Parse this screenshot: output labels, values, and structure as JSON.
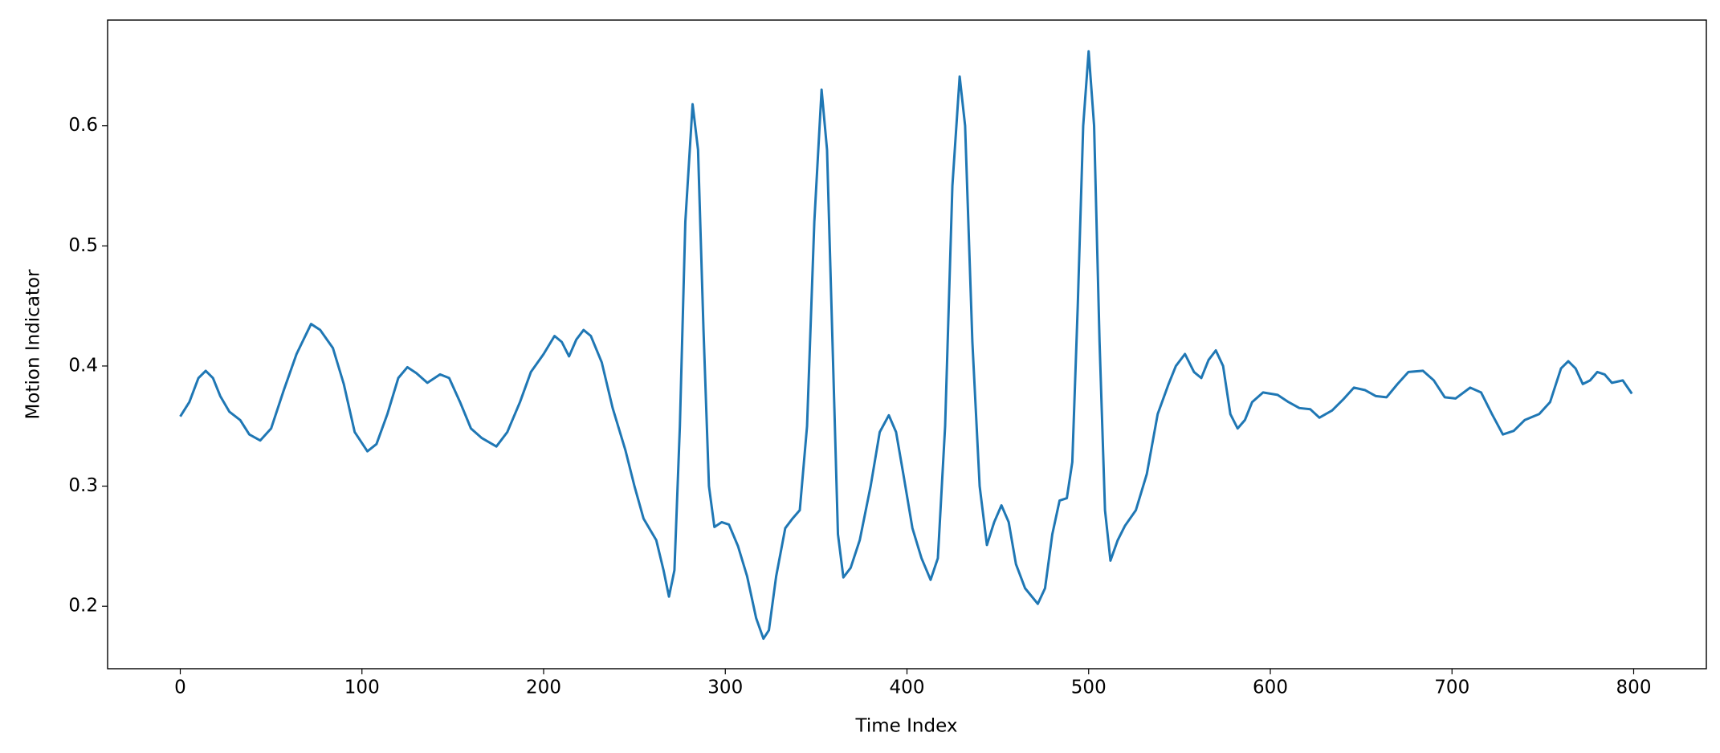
{
  "chart_data": {
    "type": "line",
    "xlabel": "Time Index",
    "ylabel": "Motion Indicator",
    "xlim": [
      -40,
      840
    ],
    "ylim": [
      0.148,
      0.688
    ],
    "xticks": [
      0,
      100,
      200,
      300,
      400,
      500,
      600,
      700,
      800
    ],
    "yticks": [
      0.2,
      0.3,
      0.4,
      0.5,
      0.6
    ],
    "x": [
      0,
      5,
      10,
      14,
      18,
      22,
      27,
      33,
      38,
      44,
      50,
      57,
      64,
      72,
      77,
      84,
      90,
      96,
      103,
      108,
      114,
      120,
      125,
      130,
      136,
      143,
      148,
      154,
      160,
      166,
      174,
      180,
      187,
      193,
      200,
      206,
      210,
      214,
      218,
      222,
      226,
      232,
      238,
      245,
      250,
      255,
      262,
      266,
      269,
      272,
      275,
      278,
      282,
      285,
      288,
      291,
      294,
      298,
      302,
      307,
      312,
      317,
      321,
      324,
      328,
      333,
      337,
      341,
      345,
      349,
      353,
      356,
      359,
      362,
      365,
      369,
      374,
      380,
      385,
      390,
      394,
      398,
      403,
      408,
      413,
      417,
      421,
      425,
      429,
      432,
      436,
      440,
      444,
      448,
      452,
      456,
      460,
      465,
      472,
      476,
      480,
      484,
      488,
      491,
      494,
      497,
      500,
      503,
      506,
      509,
      512,
      516,
      520,
      526,
      532,
      538,
      544,
      548,
      553,
      558,
      562,
      566,
      570,
      574,
      578,
      582,
      586,
      590,
      596,
      604,
      610,
      616,
      622,
      627,
      634,
      640,
      646,
      652,
      658,
      664,
      670,
      676,
      684,
      690,
      696,
      702,
      710,
      716,
      722,
      728,
      734,
      740,
      748,
      754,
      760,
      764,
      768,
      772,
      776,
      780,
      784,
      788,
      794,
      799
    ],
    "series": [
      {
        "color": "#1f77b4",
        "values": [
          0.358,
          0.37,
          0.39,
          0.396,
          0.39,
          0.375,
          0.362,
          0.355,
          0.343,
          0.338,
          0.348,
          0.38,
          0.41,
          0.435,
          0.43,
          0.415,
          0.385,
          0.345,
          0.329,
          0.335,
          0.36,
          0.39,
          0.399,
          0.394,
          0.386,
          0.393,
          0.39,
          0.37,
          0.348,
          0.34,
          0.333,
          0.345,
          0.37,
          0.395,
          0.41,
          0.425,
          0.42,
          0.408,
          0.422,
          0.43,
          0.425,
          0.403,
          0.365,
          0.33,
          0.3,
          0.273,
          0.255,
          0.23,
          0.208,
          0.23,
          0.35,
          0.52,
          0.618,
          0.58,
          0.43,
          0.3,
          0.266,
          0.27,
          0.268,
          0.25,
          0.225,
          0.19,
          0.173,
          0.18,
          0.225,
          0.265,
          0.273,
          0.28,
          0.35,
          0.52,
          0.63,
          0.58,
          0.42,
          0.26,
          0.224,
          0.232,
          0.255,
          0.3,
          0.345,
          0.359,
          0.345,
          0.31,
          0.265,
          0.24,
          0.222,
          0.24,
          0.35,
          0.55,
          0.641,
          0.6,
          0.42,
          0.3,
          0.251,
          0.27,
          0.284,
          0.27,
          0.235,
          0.215,
          0.202,
          0.215,
          0.26,
          0.288,
          0.29,
          0.32,
          0.45,
          0.6,
          0.662,
          0.6,
          0.42,
          0.28,
          0.238,
          0.255,
          0.267,
          0.28,
          0.31,
          0.36,
          0.385,
          0.4,
          0.41,
          0.395,
          0.39,
          0.405,
          0.413,
          0.4,
          0.36,
          0.348,
          0.355,
          0.37,
          0.378,
          0.376,
          0.37,
          0.365,
          0.364,
          0.357,
          0.363,
          0.372,
          0.382,
          0.38,
          0.375,
          0.374,
          0.385,
          0.395,
          0.396,
          0.388,
          0.374,
          0.373,
          0.382,
          0.378,
          0.36,
          0.343,
          0.346,
          0.355,
          0.36,
          0.37,
          0.398,
          0.404,
          0.398,
          0.385,
          0.388,
          0.395,
          0.393,
          0.386,
          0.388,
          0.377
        ]
      }
    ]
  }
}
